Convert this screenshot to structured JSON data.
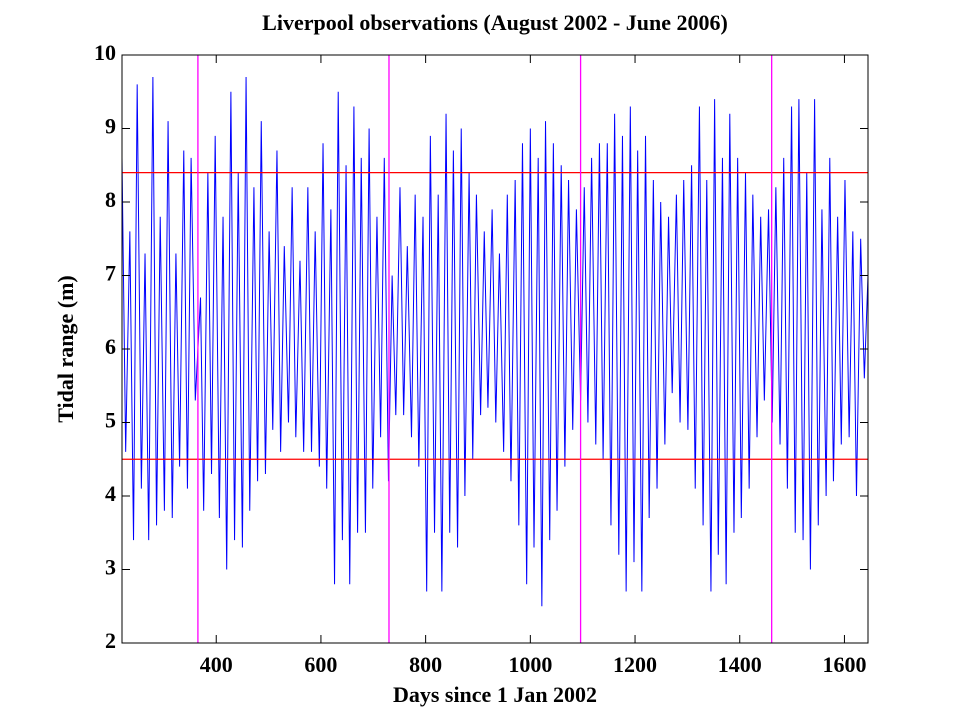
{
  "chart_data": {
    "type": "line",
    "title": "Liverpool observations (August 2002 - June 2006)",
    "xlabel": "Days since 1 Jan 2002",
    "ylabel": "Tidal range (m)",
    "xlim": [
      220,
      1645
    ],
    "ylim": [
      2,
      10
    ],
    "xticks": [
      400,
      600,
      800,
      1000,
      1200,
      1400,
      1600
    ],
    "yticks": [
      2,
      3,
      4,
      5,
      6,
      7,
      8,
      9,
      10
    ],
    "grid": false,
    "hlines": [
      {
        "value": 8.4,
        "color": "#ff0000"
      },
      {
        "value": 4.5,
        "color": "#ff0000"
      }
    ],
    "vlines": [
      {
        "value": 365,
        "color": "#ff00ff"
      },
      {
        "value": 730,
        "color": "#ff00ff"
      },
      {
        "value": 1096,
        "color": "#ff00ff"
      },
      {
        "value": 1461,
        "color": "#ff00ff"
      }
    ],
    "x": [
      220,
      227,
      235,
      242,
      249,
      257,
      264,
      271,
      279,
      286,
      293,
      301,
      308,
      316,
      323,
      330,
      338,
      345,
      352,
      360,
      370,
      376,
      384,
      391,
      398,
      406,
      413,
      420,
      428,
      435,
      442,
      450,
      457,
      464,
      472,
      479,
      486,
      494,
      501,
      508,
      516,
      523,
      530,
      538,
      545,
      552,
      560,
      567,
      575,
      582,
      589,
      597,
      604,
      611,
      619,
      626,
      633,
      641,
      648,
      655,
      663,
      670,
      677,
      685,
      692,
      699,
      707,
      714,
      721,
      729,
      736,
      743,
      751,
      758,
      765,
      773,
      780,
      787,
      795,
      802,
      809,
      817,
      824,
      831,
      839,
      846,
      853,
      861,
      868,
      875,
      883,
      890,
      897,
      905,
      912,
      919,
      927,
      934,
      941,
      949,
      956,
      963,
      971,
      978,
      985,
      993,
      1000,
      1007,
      1015,
      1022,
      1029,
      1037,
      1044,
      1051,
      1059,
      1066,
      1073,
      1081,
      1088,
      1096,
      1103,
      1110,
      1117,
      1125,
      1132,
      1139,
      1147,
      1154,
      1161,
      1169,
      1176,
      1183,
      1191,
      1198,
      1205,
      1213,
      1220,
      1227,
      1235,
      1242,
      1249,
      1257,
      1264,
      1271,
      1279,
      1286,
      1293,
      1301,
      1308,
      1315,
      1323,
      1330,
      1337,
      1345,
      1352,
      1359,
      1367,
      1374,
      1381,
      1389,
      1396,
      1403,
      1411,
      1418,
      1425,
      1433,
      1440,
      1447,
      1455,
      1462,
      1469,
      1477,
      1484,
      1491,
      1499,
      1506,
      1513,
      1521,
      1528,
      1535,
      1543,
      1550,
      1557,
      1565,
      1572,
      1579,
      1587,
      1594,
      1601,
      1609,
      1616,
      1623,
      1631,
      1638,
      1645
    ],
    "series": [
      {
        "color": "#0000ff",
        "values": [
          8.6,
          4.6,
          7.6,
          3.4,
          9.6,
          4.1,
          7.3,
          3.4,
          9.7,
          3.6,
          7.8,
          3.8,
          9.1,
          3.7,
          7.3,
          4.4,
          8.7,
          4.1,
          8.6,
          5.3,
          6.7,
          3.8,
          8.4,
          4.3,
          8.9,
          3.7,
          7.8,
          3.0,
          9.5,
          3.4,
          8.4,
          3.3,
          9.7,
          3.8,
          8.2,
          4.2,
          9.1,
          4.3,
          7.6,
          4.9,
          8.7,
          4.6,
          7.4,
          5.0,
          8.2,
          4.8,
          7.2,
          4.6,
          8.2,
          4.6,
          7.6,
          4.4,
          8.8,
          4.1,
          7.9,
          2.8,
          9.5,
          3.4,
          8.5,
          2.8,
          9.3,
          3.5,
          8.6,
          3.5,
          9.0,
          4.1,
          7.8,
          4.8,
          8.6,
          4.2,
          7.0,
          5.1,
          8.2,
          5.1,
          7.4,
          4.8,
          8.1,
          4.4,
          7.8,
          2.7,
          8.9,
          3.5,
          8.1,
          2.7,
          9.2,
          3.5,
          8.7,
          3.3,
          9.0,
          4.0,
          8.4,
          4.5,
          8.1,
          5.1,
          7.6,
          5.2,
          7.9,
          5.0,
          7.3,
          4.6,
          8.1,
          4.2,
          8.3,
          3.6,
          8.8,
          2.8,
          9.0,
          3.3,
          8.6,
          2.5,
          9.1,
          3.4,
          8.8,
          3.8,
          8.5,
          4.4,
          8.3,
          4.9,
          7.9,
          5.3,
          8.2,
          5.0,
          8.6,
          4.7,
          8.8,
          4.5,
          8.8,
          3.6,
          9.2,
          3.2,
          8.9,
          2.7,
          9.3,
          3.1,
          8.7,
          2.7,
          8.9,
          3.7,
          8.3,
          4.1,
          8.0,
          4.7,
          7.8,
          5.4,
          8.1,
          5.0,
          8.3,
          4.9,
          8.5,
          4.1,
          9.3,
          3.6,
          8.3,
          2.7,
          9.4,
          3.2,
          8.6,
          2.8,
          9.2,
          3.5,
          8.6,
          3.7,
          8.4,
          4.1,
          8.1,
          4.8,
          7.8,
          5.3,
          7.9,
          5.0,
          8.2,
          4.7,
          8.6,
          4.1,
          9.3,
          3.5,
          9.4,
          3.4,
          8.4,
          3.0,
          9.4,
          3.6,
          7.9,
          4.0,
          8.6,
          4.2,
          7.8,
          4.7,
          8.3,
          4.8,
          7.6,
          4.0,
          7.5,
          5.6,
          7.0
        ]
      }
    ]
  }
}
